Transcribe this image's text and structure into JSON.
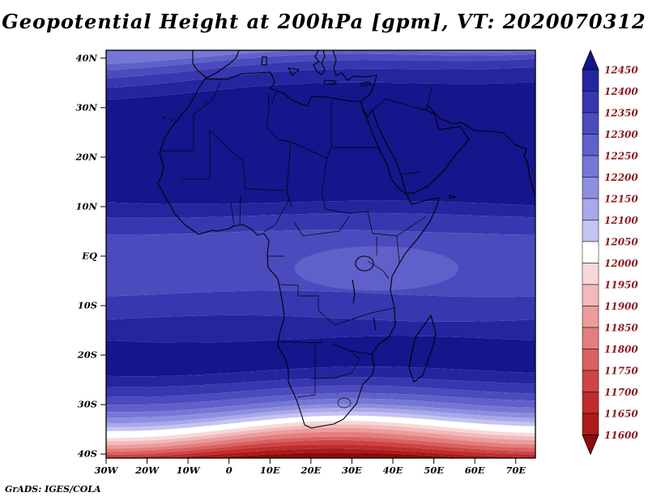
{
  "title": "Geopotential Height at 200hPa [gpm], VT: 2020070312",
  "footer": "GrADS: IGES/COLA",
  "chart_data": {
    "type": "heatmap",
    "title": "Geopotential Height at 200hPa [gpm], VT: 2020070312",
    "variable": "Geopotential Height",
    "level": "200hPa",
    "units": "gpm",
    "valid_time": "2020070312",
    "region": "Africa and surroundings",
    "grid": false,
    "legend_position": "right-colorbar",
    "lon_range_deg": [
      -30,
      74.8
    ],
    "lat_range_deg": [
      -40.8,
      41.6
    ],
    "x_ticks": [
      {
        "lon": -30,
        "label": "30W"
      },
      {
        "lon": -20,
        "label": "20W"
      },
      {
        "lon": -10,
        "label": "10W"
      },
      {
        "lon": 0,
        "label": "0"
      },
      {
        "lon": 10,
        "label": "10E"
      },
      {
        "lon": 20,
        "label": "20E"
      },
      {
        "lon": 30,
        "label": "30E"
      },
      {
        "lon": 40,
        "label": "40E"
      },
      {
        "lon": 50,
        "label": "50E"
      },
      {
        "lon": 60,
        "label": "60E"
      },
      {
        "lon": 70,
        "label": "70E"
      }
    ],
    "y_ticks": [
      {
        "lat": 40,
        "label": "40N"
      },
      {
        "lat": 30,
        "label": "30N"
      },
      {
        "lat": 20,
        "label": "20N"
      },
      {
        "lat": 10,
        "label": "10N"
      },
      {
        "lat": 0,
        "label": "EQ"
      },
      {
        "lat": -10,
        "label": "10S"
      },
      {
        "lat": -20,
        "label": "20S"
      },
      {
        "lat": -30,
        "label": "30S"
      },
      {
        "lat": -40,
        "label": "40S"
      }
    ],
    "colorbar": {
      "labels": [
        "12450",
        "12400",
        "12350",
        "12300",
        "12250",
        "12200",
        "12150",
        "12100",
        "12050",
        "12000",
        "11950",
        "11900",
        "11850",
        "11800",
        "11750",
        "11700",
        "11650",
        "11600"
      ],
      "label_color": "#8b1a1a",
      "colors": [
        "#15158c",
        "#2525a0",
        "#3737b0",
        "#4b4bbe",
        "#6060ca",
        "#7676d6",
        "#8e8ee0",
        "#a8a8ea",
        "#c4c4f2",
        "#ffffff",
        "#f8d8d8",
        "#f2baba",
        "#ec9c9c",
        "#e47e7e",
        "#da6060",
        "#ce4444",
        "#c02c2c",
        "#ac1a1a",
        "#8c0c0c"
      ]
    },
    "field_bands": {
      "description": "Zonal contour-fill bands from north to south; fill_color_index points into colorbar.colors (0 = >12450 gpm ... 18 = <11600 gpm). Heights ~12450 over the Sahara and southern subtropics, a slightly lower belt (~12300-12350) along the equator, and a steep drop south of 25S to below 11600 at 40S.",
      "boundaries": [
        {
          "lat": 40.9,
          "amp": 5,
          "phase": 1.8,
          "tilt": -16
        },
        {
          "lat": 40.0,
          "amp": 5,
          "phase": 1.8,
          "tilt": -20
        },
        {
          "lat": 38.7,
          "amp": 5,
          "phase": 1.8,
          "tilt": -24
        },
        {
          "lat": 36.9,
          "amp": 5,
          "phase": 1.8,
          "tilt": -26
        },
        {
          "lat": 34.2,
          "amp": 5,
          "phase": 1.8,
          "tilt": -22
        },
        {
          "lat": 10.8,
          "amp": 3,
          "phase": 0.5,
          "tilt": 4
        },
        {
          "lat": 8.2,
          "amp": 3,
          "phase": 0.9,
          "tilt": 0
        },
        {
          "lat": 4.8,
          "amp": 3,
          "phase": 1.4,
          "tilt": 0
        },
        {
          "lat": -7.6,
          "amp": 4,
          "phase": 2.2,
          "tilt": 0
        },
        {
          "lat": -12.6,
          "amp": 4,
          "phase": 2.8,
          "tilt": 0
        },
        {
          "lat": -16.8,
          "amp": 4,
          "phase": 0.4,
          "tilt": 0
        },
        {
          "lat": -23.2,
          "amp": 5,
          "phase": 1.0,
          "tilt": -4
        },
        {
          "lat": -25.4,
          "amp": 5,
          "phase": 1.1,
          "tilt": -4
        },
        {
          "lat": -27.2,
          "amp": 6,
          "phase": 1.15,
          "tilt": -4
        },
        {
          "lat": -28.7,
          "amp": 6,
          "phase": 1.2,
          "tilt": -5
        },
        {
          "lat": -30.0,
          "amp": 7,
          "phase": 1.2,
          "tilt": -5
        },
        {
          "lat": -31.1,
          "amp": 7,
          "phase": 1.25,
          "tilt": -5
        },
        {
          "lat": -32.0,
          "amp": 8,
          "phase": 1.25,
          "tilt": -6
        },
        {
          "lat": -32.8,
          "amp": 8,
          "phase": 1.3,
          "tilt": -6
        },
        {
          "lat": -33.6,
          "amp": 8,
          "phase": 1.3,
          "tilt": -6
        },
        {
          "lat": -34.8,
          "amp": 9,
          "phase": 1.35,
          "tilt": -6
        },
        {
          "lat": -35.5,
          "amp": 9,
          "phase": 1.35,
          "tilt": -6
        },
        {
          "lat": -36.2,
          "amp": 9,
          "phase": 1.4,
          "tilt": -6
        },
        {
          "lat": -37.0,
          "amp": 9,
          "phase": 1.4,
          "tilt": -5
        },
        {
          "lat": -37.8,
          "amp": 8,
          "phase": 1.45,
          "tilt": -5
        },
        {
          "lat": -38.5,
          "amp": 8,
          "phase": 1.45,
          "tilt": -4
        },
        {
          "lat": -39.2,
          "amp": 7,
          "phase": 1.5,
          "tilt": -4
        },
        {
          "lat": -39.9,
          "amp": 6,
          "phase": 1.5,
          "tilt": -3
        },
        {
          "lat": -40.5,
          "amp": 5,
          "phase": 1.4,
          "tilt": -2
        }
      ],
      "fill_color_index": [
        5,
        4,
        3,
        2,
        1,
        0,
        1,
        2,
        3,
        2,
        1,
        0,
        1,
        2,
        3,
        4,
        5,
        6,
        7,
        8,
        9,
        10,
        11,
        12,
        13,
        14,
        15,
        16,
        17,
        18
      ],
      "equatorial_light_patch": {
        "lon": 36,
        "lat": -2.5,
        "rx_deg": 20,
        "ry_deg": 4.5,
        "color_index": 4
      }
    }
  }
}
